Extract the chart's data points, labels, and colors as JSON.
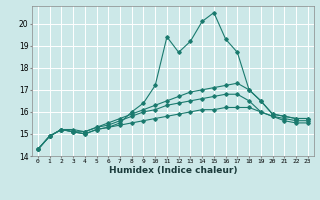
{
  "xlabel": "Humidex (Indice chaleur)",
  "xlim": [
    -0.5,
    23.5
  ],
  "ylim": [
    14,
    20.8
  ],
  "yticks": [
    14,
    15,
    16,
    17,
    18,
    19,
    20
  ],
  "xticks": [
    0,
    1,
    2,
    3,
    4,
    5,
    6,
    7,
    8,
    9,
    10,
    11,
    12,
    13,
    14,
    15,
    16,
    17,
    18,
    19,
    20,
    21,
    22,
    23
  ],
  "background_color": "#cce8e8",
  "grid_color": "#ffffff",
  "line_color": "#1a7a6e",
  "series": [
    [
      14.3,
      14.9,
      15.2,
      15.1,
      15.0,
      15.2,
      15.3,
      15.5,
      16.0,
      16.4,
      17.2,
      19.4,
      18.7,
      19.2,
      20.1,
      20.5,
      19.3,
      18.7,
      17.0,
      16.5,
      15.9,
      15.8,
      15.7,
      15.7
    ],
    [
      14.3,
      14.9,
      15.2,
      15.2,
      15.1,
      15.3,
      15.5,
      15.7,
      15.9,
      16.1,
      16.3,
      16.5,
      16.7,
      16.9,
      17.0,
      17.1,
      17.2,
      17.3,
      17.0,
      16.5,
      15.9,
      15.8,
      15.7,
      15.7
    ],
    [
      14.3,
      14.9,
      15.2,
      15.1,
      15.1,
      15.3,
      15.4,
      15.6,
      15.8,
      16.0,
      16.1,
      16.3,
      16.4,
      16.5,
      16.6,
      16.7,
      16.8,
      16.8,
      16.5,
      16.0,
      15.8,
      15.7,
      15.6,
      15.6
    ],
    [
      14.3,
      14.9,
      15.2,
      15.1,
      15.0,
      15.2,
      15.3,
      15.4,
      15.5,
      15.6,
      15.7,
      15.8,
      15.9,
      16.0,
      16.1,
      16.1,
      16.2,
      16.2,
      16.2,
      16.0,
      15.8,
      15.6,
      15.5,
      15.5
    ]
  ]
}
